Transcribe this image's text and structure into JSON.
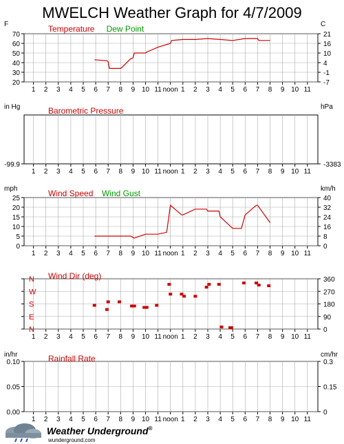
{
  "title": "MWELCH Weather Graph for 4/7/2009",
  "hour_labels": [
    "1",
    "2",
    "3",
    "4",
    "5",
    "6",
    "7",
    "8",
    "9",
    "10",
    "11",
    "noon",
    "1",
    "2",
    "3",
    "4",
    "5",
    "6",
    "7",
    "8",
    "9",
    "10",
    "11"
  ],
  "footer": {
    "brand": "Weather Underground",
    "trademark": "®",
    "url": "wunderground.com"
  },
  "colors": {
    "red": "#cc0000",
    "green": "#009900",
    "grid": "#aaaaaa"
  },
  "chart_data": [
    {
      "id": "temperature",
      "type": "line",
      "left_unit": "F",
      "right_unit": "C",
      "legend": [
        {
          "name": "Temperature",
          "color": "#cc0000"
        },
        {
          "name": "Dew Point",
          "color": "#009900"
        }
      ],
      "y_left_ticks": [
        "70",
        "60",
        "50",
        "40",
        "30",
        "20"
      ],
      "y_right_ticks": [
        "21",
        "16",
        "10",
        "4",
        "-1",
        "-7"
      ],
      "ylim": [
        20,
        70
      ],
      "series": [
        {
          "name": "Temperature",
          "color": "#cc0000",
          "x": [
            5.9,
            6.9,
            7.0,
            7.1,
            8.0,
            8.1,
            8.8,
            9.0,
            9.1,
            10.0,
            10.1,
            11.0,
            12.0,
            12.1,
            13.0,
            14.0,
            15.0,
            16.0,
            17.0,
            18.0,
            19.0,
            19.1,
            20.0
          ],
          "y": [
            43,
            42,
            41,
            34,
            34,
            35,
            44,
            45,
            50,
            50,
            51,
            56,
            60,
            63,
            64,
            64,
            65,
            64,
            63,
            65,
            65,
            63,
            63
          ]
        }
      ]
    },
    {
      "id": "pressure",
      "type": "line",
      "left_unit": "in Hg",
      "right_unit": "hPa",
      "legend": [
        {
          "name": "Barometric Pressure",
          "color": "#cc0000"
        }
      ],
      "y_left_ticks": [
        "-99.9"
      ],
      "y_right_ticks": [
        "-3383"
      ],
      "series": []
    },
    {
      "id": "wind",
      "type": "line",
      "left_unit": "mph",
      "right_unit": "km/h",
      "legend": [
        {
          "name": "Wind Speed",
          "color": "#cc0000"
        },
        {
          "name": "Wind Gust",
          "color": "#009900"
        }
      ],
      "y_left_ticks": [
        "25",
        "20",
        "15",
        "10",
        "5",
        "0"
      ],
      "y_right_ticks": [
        "40",
        "32",
        "24",
        "16",
        "8",
        "0"
      ],
      "ylim": [
        0,
        25
      ],
      "series": [
        {
          "name": "Wind Speed",
          "color": "#cc0000",
          "x": [
            5.9,
            8.8,
            9.1,
            10.0,
            11.0,
            11.7,
            12.0,
            12.9,
            13.0,
            14.0,
            14.9,
            15.0,
            15.9,
            16.0,
            17.0,
            17.7,
            18.0,
            18.9,
            19.0,
            20.0
          ],
          "y": [
            5,
            5,
            4,
            6,
            6,
            7,
            21,
            16,
            16,
            19,
            19,
            18,
            18,
            15,
            9,
            9,
            16,
            21,
            21,
            12
          ]
        }
      ]
    },
    {
      "id": "winddir",
      "type": "scatter",
      "left_labels": [
        "N",
        "W",
        "S",
        "E",
        "N"
      ],
      "y_right_ticks": [
        "360",
        "270",
        "180",
        "90",
        "0"
      ],
      "legend": [
        {
          "name": "Wind Dir (deg)",
          "color": "#cc0000"
        }
      ],
      "ylim": [
        0,
        360
      ],
      "series": [
        {
          "name": "Wind Dir (deg)",
          "color": "#cc0000",
          "x": [
            5.9,
            6.9,
            7.0,
            7.9,
            8.9,
            9.1,
            9.9,
            10.1,
            10.9,
            11.9,
            12.0,
            12.9,
            13.1,
            14.0,
            14.9,
            15.1,
            15.9,
            16.1,
            16.8,
            16.9,
            17.9,
            18.9,
            19.1,
            19.9
          ],
          "y": [
            170,
            140,
            195,
            195,
            165,
            165,
            155,
            155,
            170,
            320,
            250,
            250,
            235,
            235,
            300,
            320,
            320,
            15,
            10,
            10,
            330,
            330,
            315,
            310
          ]
        }
      ]
    },
    {
      "id": "rainfall",
      "type": "line",
      "left_unit": "in/hr",
      "right_unit": "cm/hr",
      "legend": [
        {
          "name": "Rainfall Rate",
          "color": "#cc0000"
        }
      ],
      "y_left_ticks": [
        "0.10",
        "0.05",
        "0.00"
      ],
      "y_right_ticks": [
        "0.3",
        "0.15",
        "0"
      ],
      "ylim": [
        0,
        0.1
      ],
      "series": []
    }
  ]
}
